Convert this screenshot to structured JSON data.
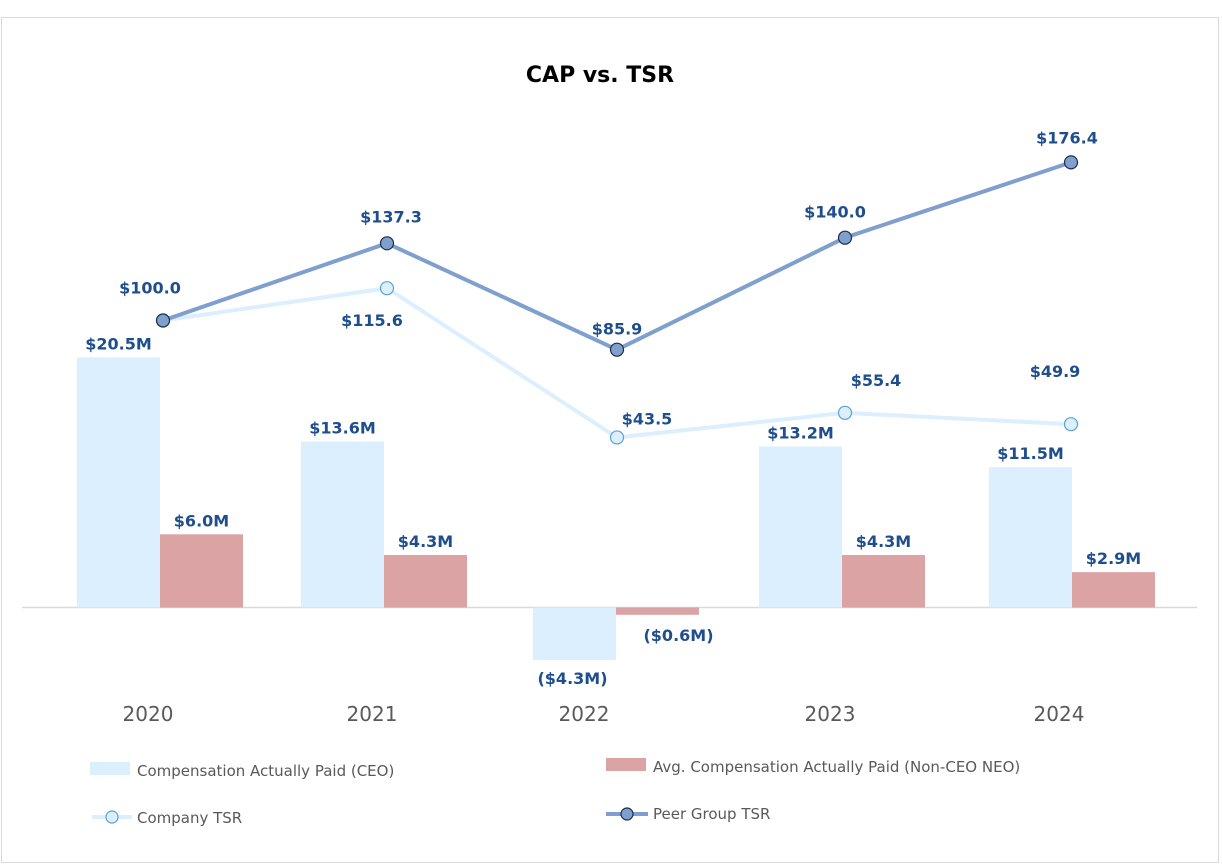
{
  "chart_data": {
    "type": "bar",
    "title": "CAP vs. TSR",
    "categories": [
      "2020",
      "2021",
      "2022",
      "2023",
      "2024"
    ],
    "bar_series": [
      {
        "name": "Compensation Actually Paid (CEO)",
        "color": "#dcefff",
        "values": [
          20.5,
          13.6,
          -4.3,
          13.2,
          11.5
        ],
        "labels": [
          "$20.5M",
          "$13.6M",
          "($4.3M)",
          "$13.2M",
          "$11.5M"
        ]
      },
      {
        "name": "Avg. Compensation Actually Paid (Non-CEO NEO)",
        "color": "#dba3a3",
        "values": [
          6.0,
          4.3,
          -0.6,
          4.3,
          2.9
        ],
        "labels": [
          "$6.0M",
          "$4.3M",
          "($0.6M)",
          "$4.3M",
          "$2.9M"
        ]
      }
    ],
    "line_series": [
      {
        "name": "Company TSR",
        "color": "#dcefff",
        "marker_fill": "#dcefff",
        "marker_stroke": "#5aa2d4",
        "values": [
          100.0,
          115.6,
          43.5,
          55.4,
          49.9
        ],
        "labels": [
          "$100.0",
          "$115.6",
          "$43.5",
          "$55.4",
          "$49.9"
        ]
      },
      {
        "name": "Peer Group TSR",
        "color": "#7f9fcf",
        "marker_fill": "#7f9fcf",
        "marker_stroke": "#1f2d45",
        "values": [
          100.0,
          137.3,
          85.9,
          140.0,
          176.4
        ],
        "labels": [
          "$100.0",
          "$137.3",
          "$85.9",
          "$140.0",
          "$176.4"
        ]
      }
    ],
    "bar_axis_range": [
      -5,
      30
    ],
    "tsr_axis_range": [
      -50,
      200
    ],
    "grid": false,
    "legend_position": "bottom"
  }
}
